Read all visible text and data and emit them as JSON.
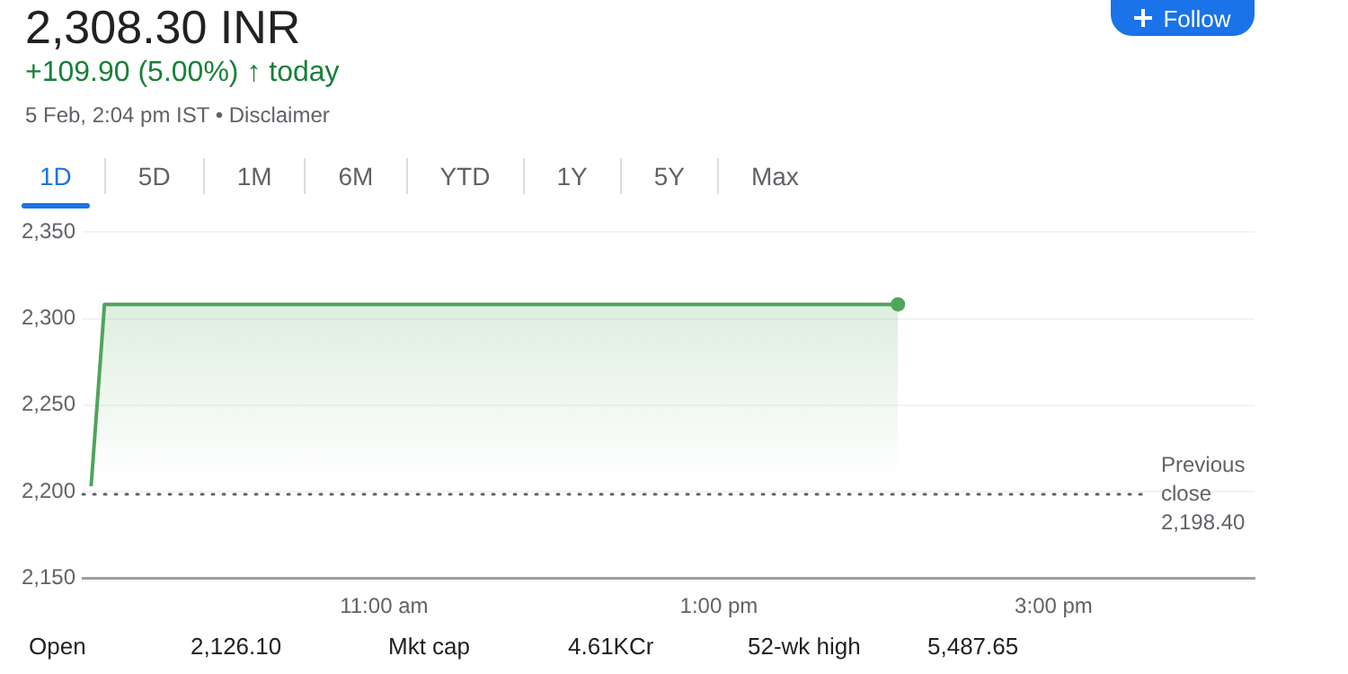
{
  "chart_data": {
    "type": "area",
    "title": "2,308.30 INR",
    "subtitle": "+109.90 (5.00%) ↑ today",
    "annotations": [
      "5 Feb, 2:04 pm IST • Disclaimer",
      "1D",
      "5D",
      "1M",
      "6M",
      "YTD",
      "1Y",
      "5Y",
      "Max",
      "Follow",
      "Open",
      "2,126.10",
      "Mkt cap",
      "4.61KCr",
      "52-wk high",
      "5,487.65"
    ],
    "x": [
      9.25,
      9.33,
      14.07
    ],
    "series": [
      {
        "color": "#4fa55a",
        "values": [
          2203,
          2308.3,
          2308.3
        ]
      }
    ],
    "xlim": [
      9.2,
      16.2
    ],
    "xticks": [
      {
        "value": 11,
        "label": "11:00 am"
      },
      {
        "value": 13,
        "label": "1:00 pm"
      },
      {
        "value": 15,
        "label": "3:00 pm"
      }
    ],
    "ylim": [
      2150,
      2350
    ],
    "yticks": [
      {
        "value": 2150,
        "label": "2,150"
      },
      {
        "value": 2200,
        "label": "2,200"
      },
      {
        "value": 2250,
        "label": "2,250"
      },
      {
        "value": 2300,
        "label": "2,300"
      },
      {
        "value": 2350,
        "label": "2,350"
      }
    ],
    "ref_lines": [
      {
        "axis": "y",
        "value": 2198.4,
        "label": "Previous close 2,198.40",
        "line_style": "dotted",
        "color": "#5f6368"
      }
    ],
    "grid": "y",
    "legend": false
  }
}
